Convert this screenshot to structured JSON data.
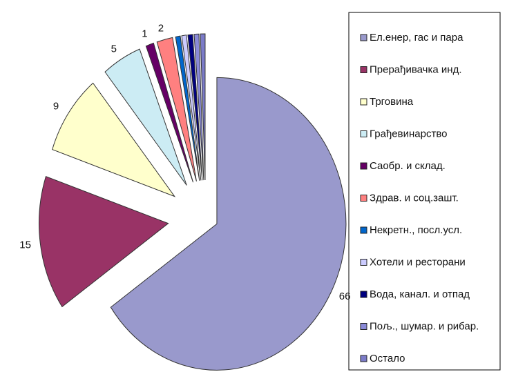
{
  "chart_data": {
    "type": "pie",
    "categories": [
      "Ел.енер, гас и пара",
      "Прерађивачка инд.",
      "Трговина",
      "Грађевинарство",
      "Саобр. и склад.",
      "Здрав. и соц.зашт.",
      "Некретн., посл.усл.",
      "Хотели и ресторани",
      "Вода, канал. и отпад",
      "Пољ., шумар. и рибар.",
      "Остало"
    ],
    "values": [
      66,
      15,
      9,
      5,
      1,
      2,
      0.6,
      0.6,
      0.6,
      0.6,
      0.6
    ],
    "value_labels": [
      "66",
      "15",
      "9",
      "5",
      "1",
      "2",
      null,
      null,
      null,
      null,
      null
    ],
    "colors": [
      "#9999cc",
      "#993366",
      "#ffffcc",
      "#ccecf4",
      "#660066",
      "#ff8080",
      "#0066cc",
      "#ccccff",
      "#000080",
      "#8a8ad8",
      "#7b7bc8"
    ],
    "legend": "right"
  }
}
